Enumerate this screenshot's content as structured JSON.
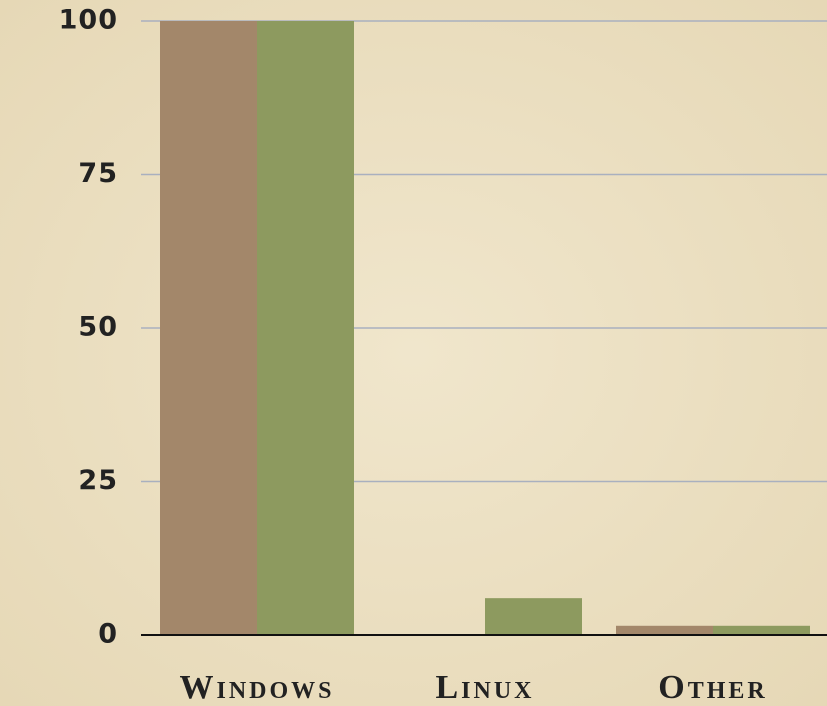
{
  "chart_data": {
    "type": "bar",
    "categories": [
      "Windows",
      "Linux",
      "Other"
    ],
    "series": [
      {
        "color": "#a3876a",
        "values": [
          100,
          0,
          1.5
        ]
      },
      {
        "color": "#8d9a5f",
        "values": [
          100,
          6,
          1.5
        ]
      }
    ],
    "ylim": [
      0,
      100
    ],
    "yticks": [
      0,
      25,
      50,
      75,
      100
    ],
    "grid": true
  }
}
